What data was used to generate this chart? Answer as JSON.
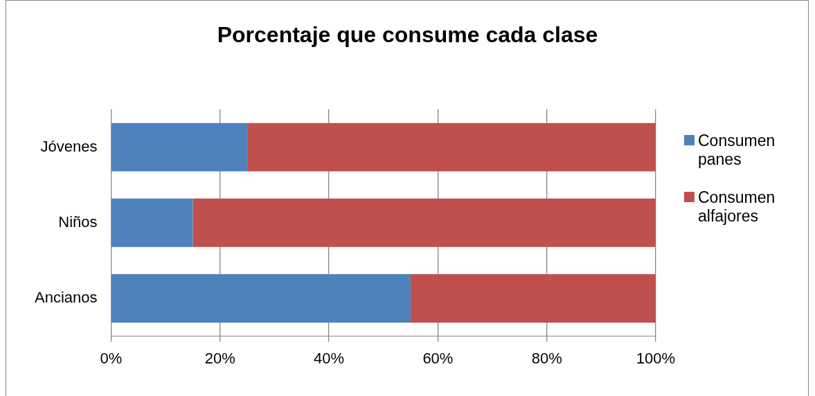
{
  "chart_data": {
    "type": "bar",
    "orientation": "horizontal",
    "stacked": true,
    "title": "Porcentaje que consume cada clase",
    "categories": [
      "Jóvenes",
      "Niños",
      "Ancianos"
    ],
    "series": [
      {
        "name": "Consumen panes",
        "color": "#4f81bd",
        "values": [
          25,
          15,
          55
        ]
      },
      {
        "name": "Consumen alfajores",
        "color": "#c0504d",
        "values": [
          75,
          85,
          45
        ]
      }
    ],
    "xlim": [
      0,
      100
    ],
    "xticks": [
      {
        "value": 0,
        "label": "0%"
      },
      {
        "value": 20,
        "label": "20%"
      },
      {
        "value": 40,
        "label": "40%"
      },
      {
        "value": 60,
        "label": "60%"
      },
      {
        "value": 80,
        "label": "80%"
      },
      {
        "value": 100,
        "label": "100%"
      }
    ],
    "grid": "x",
    "legend": "right"
  }
}
